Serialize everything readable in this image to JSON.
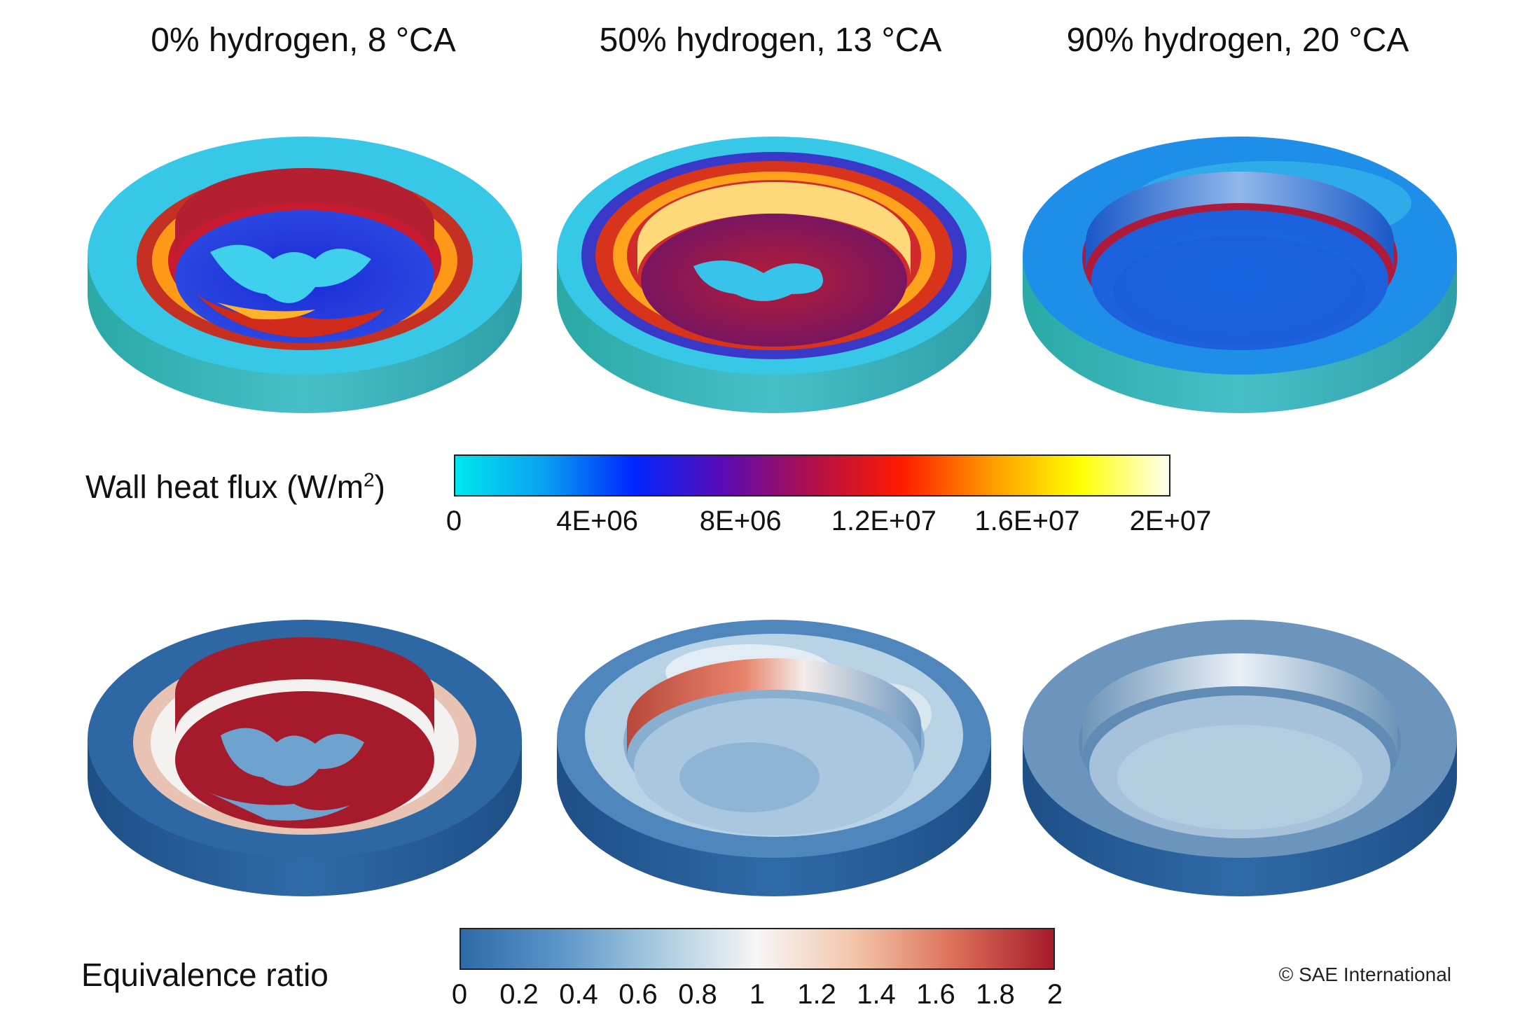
{
  "titles": [
    "0% hydrogen, 8 °CA",
    "50% hydrogen, 13 °CA",
    "90% hydrogen, 20 °CA"
  ],
  "heat_flux": {
    "label": "Wall heat flux (W/m",
    "label_sup": "2",
    "label_close": ")",
    "ticks": [
      "0",
      "4E+06",
      "8E+06",
      "1.2E+07",
      "1.6E+07",
      "2E+07"
    ],
    "colors": [
      "#00e6ee",
      "#0aa0f0",
      "#0026ff",
      "#5a0ab5",
      "#b0104a",
      "#ff1a00",
      "#ff9a00",
      "#ffff00",
      "#fffff0"
    ]
  },
  "equivalence": {
    "label": "Equivalence ratio",
    "ticks": [
      "0",
      "0.2",
      "0.4",
      "0.6",
      "0.8",
      "1",
      "1.2",
      "1.4",
      "1.6",
      "1.8",
      "2"
    ],
    "colors": [
      "#2f6aa8",
      "#5c95c8",
      "#a8cbe0",
      "#f6f6f6",
      "#f3c4a8",
      "#dc6f58",
      "#a51b2b"
    ]
  },
  "copyright": "© SAE International"
}
